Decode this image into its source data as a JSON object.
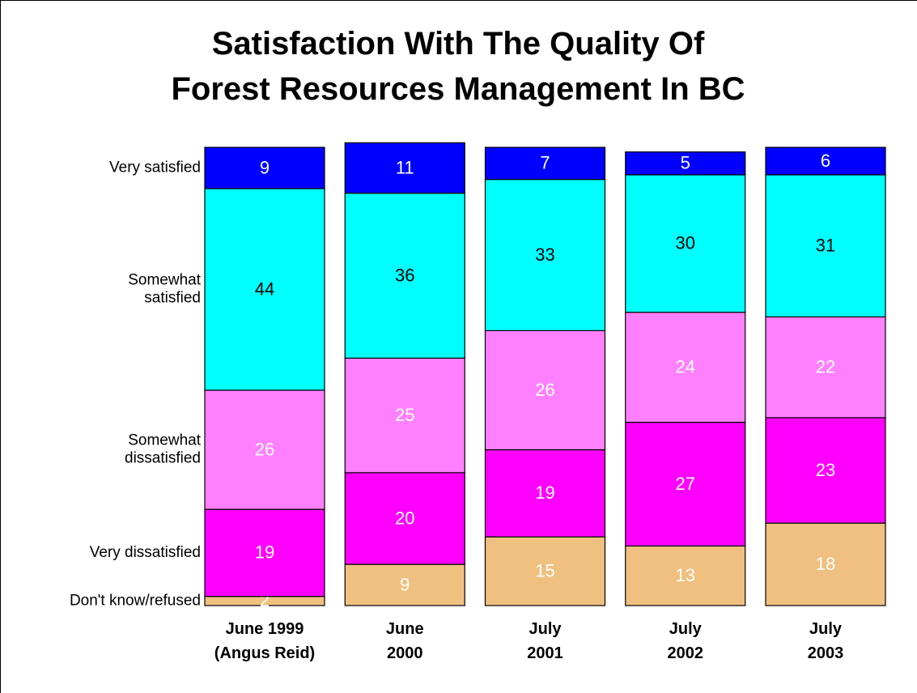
{
  "chart_data": {
    "type": "stacked_bar",
    "title": "Satisfaction With The Quality Of\nForest Resources Management In BC",
    "categories": [
      "June 1999\n(Angus Reid)",
      "June\n2000",
      "July\n2001",
      "July\n2002",
      "July\n2003"
    ],
    "ylim": [
      0,
      100
    ],
    "series": [
      {
        "name": "Don't know/refused",
        "color": "#f0c080",
        "label_color": "#ffffff",
        "values": [
          2,
          9,
          15,
          13,
          18
        ]
      },
      {
        "name": "Very dissatisfied",
        "color": "#ff00ff",
        "label_color": "#ffffff",
        "values": [
          19,
          20,
          19,
          27,
          23
        ]
      },
      {
        "name": "Somewhat\ndissatisfied",
        "color": "#ff80ff",
        "label_color": "#ffffff",
        "values": [
          26,
          25,
          26,
          24,
          22
        ]
      },
      {
        "name": "Somewhat\nsatisfied",
        "color": "#00ffff",
        "label_color": "#000000",
        "values": [
          44,
          36,
          33,
          30,
          31
        ]
      },
      {
        "name": "Very satisfied",
        "color": "#0000ff",
        "label_color": "#ffffff",
        "values": [
          9,
          11,
          7,
          5,
          6
        ]
      }
    ]
  }
}
